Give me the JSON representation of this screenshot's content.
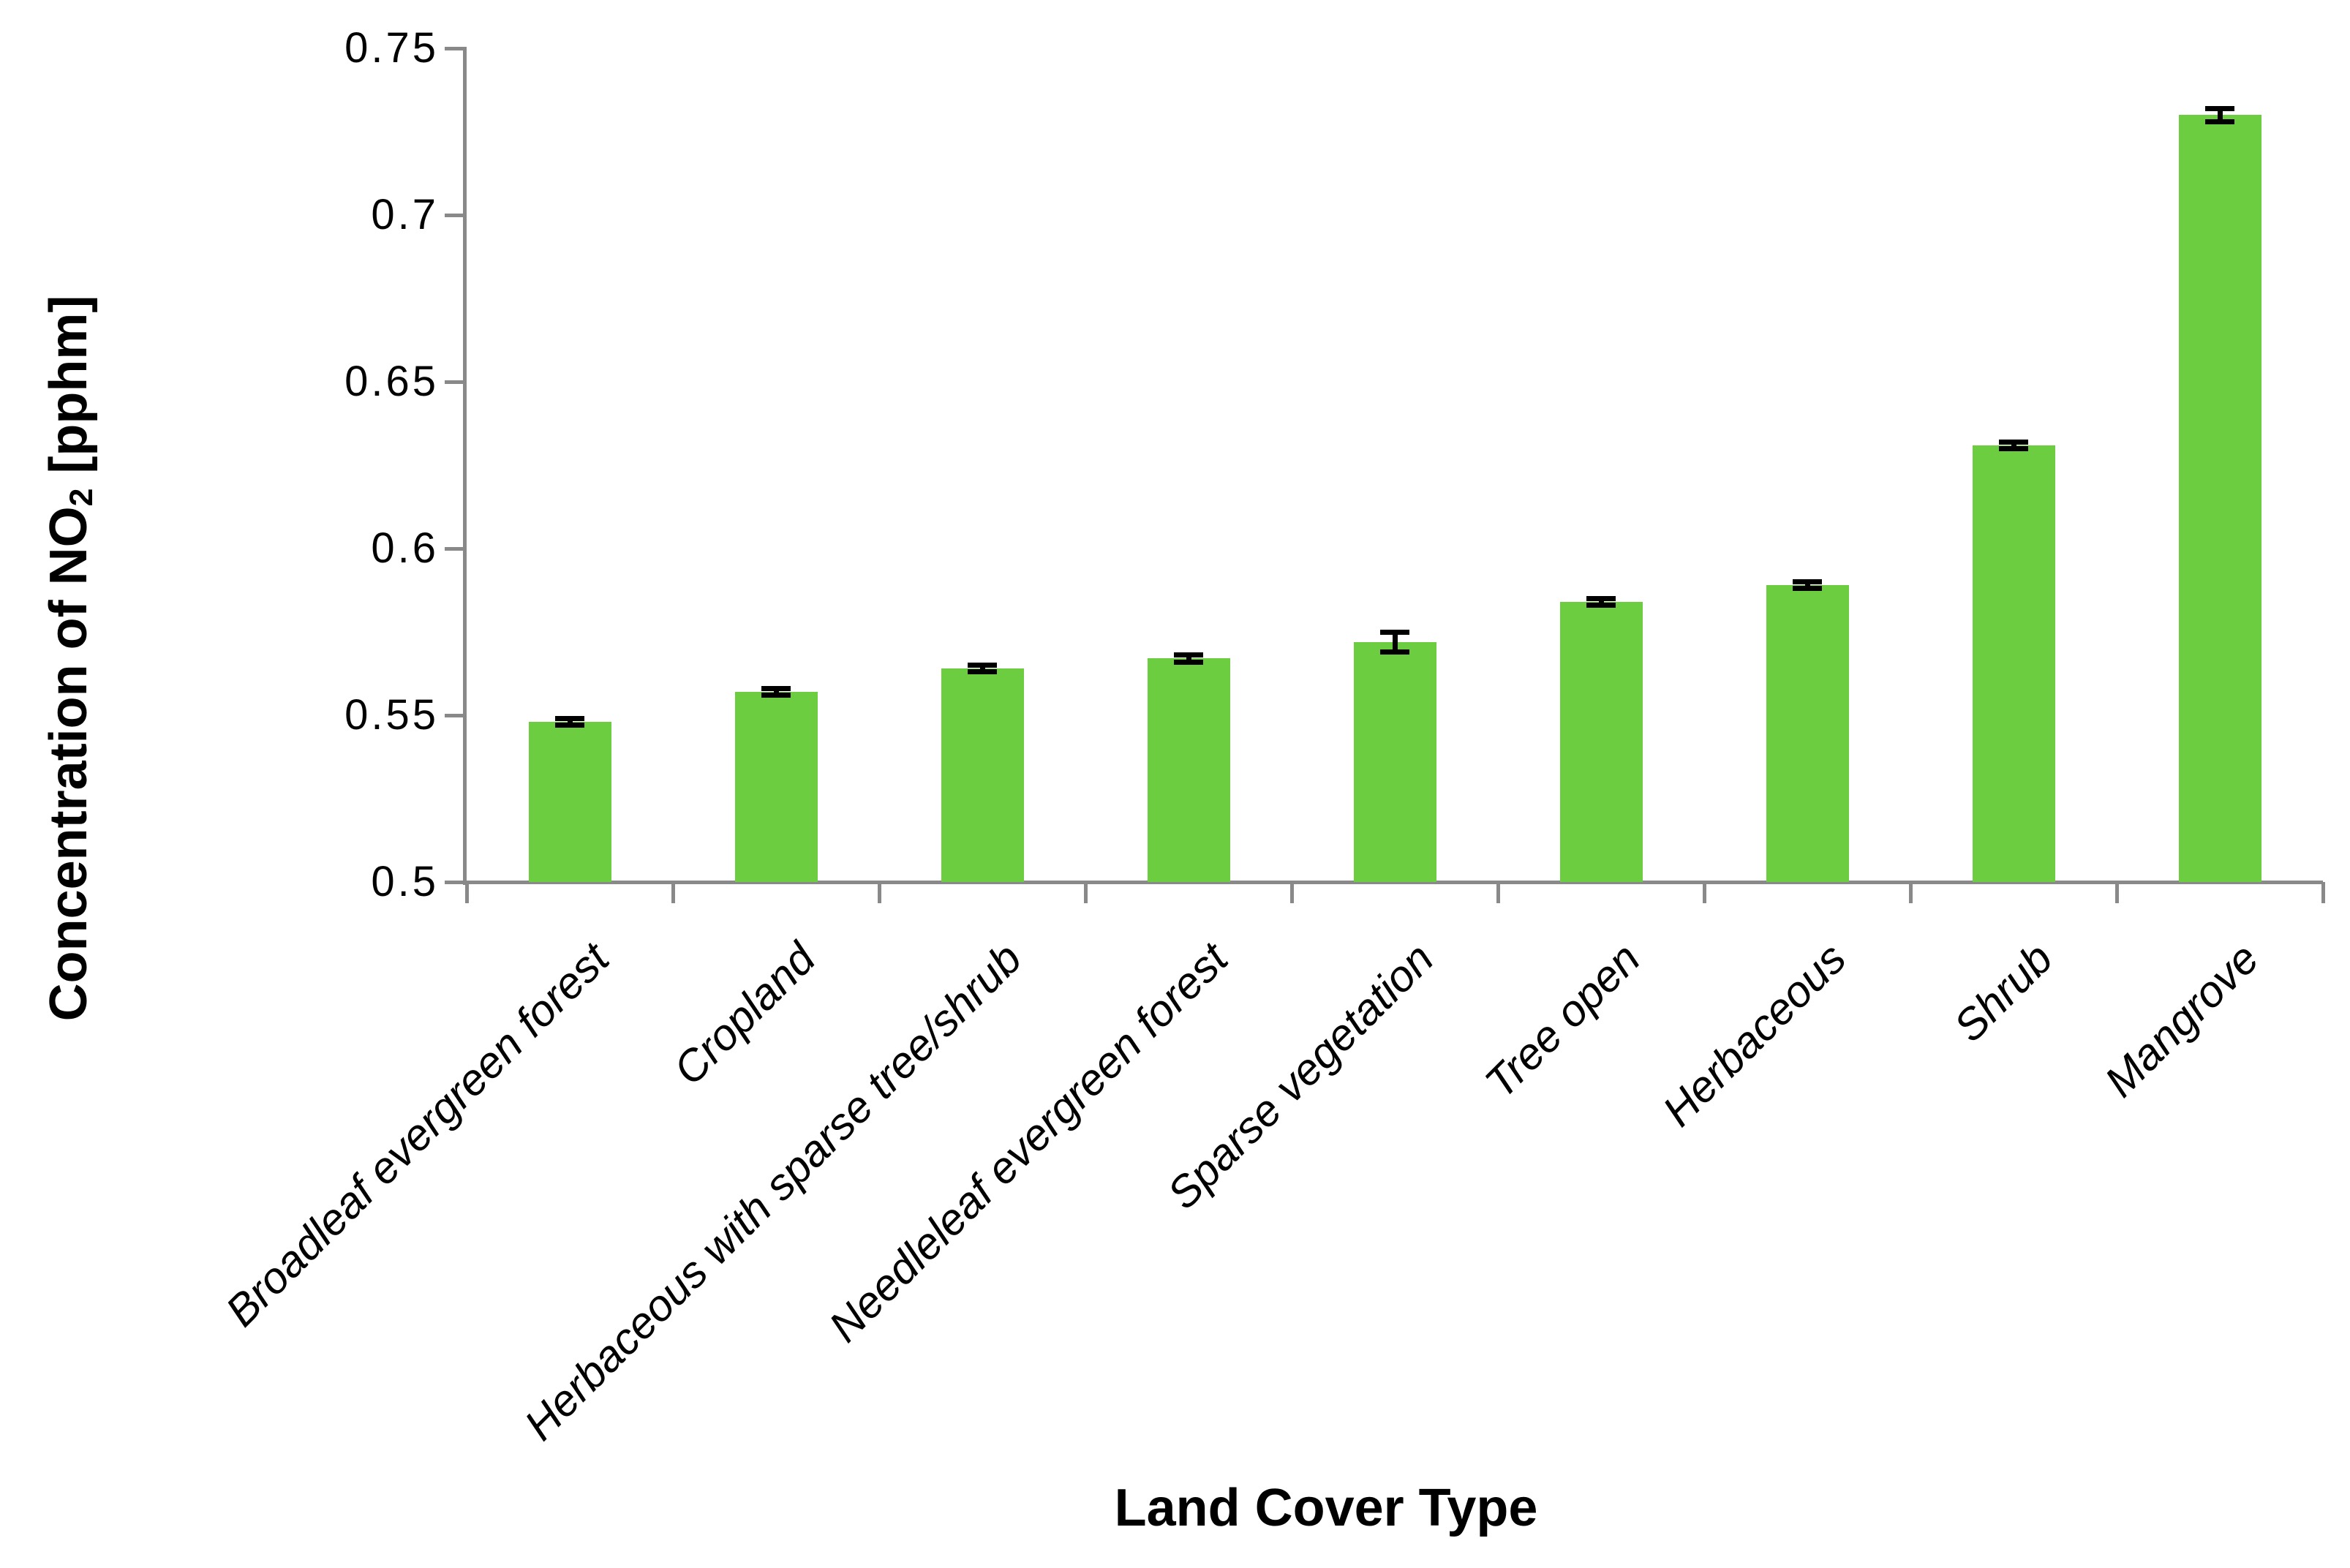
{
  "chart_data": {
    "type": "bar",
    "title": "",
    "xlabel": "Land Cover Type",
    "ylabel": "Concentration of NO₂  [pphm]",
    "ylabel_parts": {
      "prefix": "Concentration of NO",
      "sub": "2",
      "suffix": "  [pphm]"
    },
    "categories": [
      "Broadleaf evergreen forest",
      "Cropland",
      "Herbaceous with sparse tree/shrub",
      "Needleleaf evergreen forest",
      "Sparse vegetation",
      "Tree open",
      "Herbaceous",
      "Shrub",
      "Mangrove"
    ],
    "values": [
      0.548,
      0.557,
      0.564,
      0.567,
      0.572,
      0.584,
      0.589,
      0.631,
      0.73
    ],
    "errors": [
      0.001,
      0.001,
      0.001,
      0.001,
      0.003,
      0.001,
      0.001,
      0.001,
      0.002
    ],
    "ylim": [
      0.5,
      0.75
    ],
    "ytick_step": 0.05,
    "ytick_labels": [
      "0.5",
      "0.55",
      "0.6",
      "0.65",
      "0.7",
      "0.75"
    ],
    "ytick_values": [
      0.5,
      0.55,
      0.6,
      0.65,
      0.7,
      0.75
    ],
    "bar_color": "#6CCD41",
    "axis_color": "#898989",
    "error_color": "#000000",
    "grid": false,
    "legend": false,
    "error_bars": true,
    "bar_label_style": "italic-rotated-45"
  }
}
